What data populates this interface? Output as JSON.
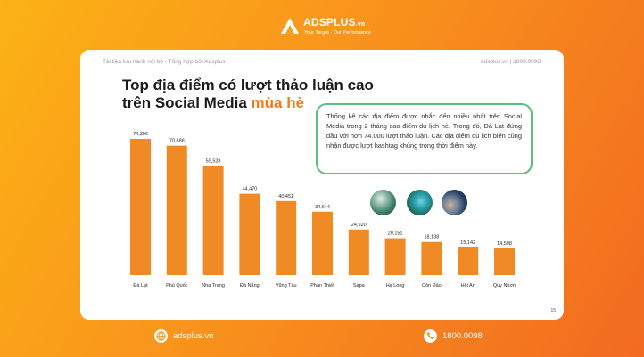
{
  "brand": {
    "name": "ADSPLUS",
    "suffix": ".vn",
    "tagline": "Your Target - Our Performance"
  },
  "header": {
    "left": "Tài liệu lưu hành nội bộ - Tổng hợp bởi Adsplus",
    "right": "adsplus.vn | 1800.0098"
  },
  "title": {
    "line1": "Top địa điểm có lượt thảo luận cao",
    "line2": "trên Social Media ",
    "accent": "mùa hè"
  },
  "info_text": "Thống kê các địa điểm được nhắc đến nhiều nhất trên Social Media trong 2 tháng cao điểm du lịch hè. Trong đó, Đà Lạt đứng đầu với hơn 74.000 lượt thảo luận. Các địa điểm du lịch biển cũng nhận được lượt hashtag khủng trong thời điểm này.",
  "page_number": "15",
  "footer": {
    "website": "adsplus.vn",
    "phone": "1800.0098"
  },
  "colors": {
    "bar": "#f08a24",
    "accent": "#f07b1a",
    "border": "#5cc07a"
  },
  "icons": {
    "website": "globe-icon",
    "phone": "phone-icon"
  },
  "chart_data": {
    "type": "bar",
    "categories": [
      "Đà Lạt",
      "Phú Quốc",
      "Nha Trang",
      "Đà Nẵng",
      "Vũng Tàu",
      "Phan Thiết",
      "Sapa",
      "Hạ Long",
      "Côn Đảo",
      "Hội An",
      "Quy Nhơn"
    ],
    "values": [
      74396,
      70688,
      59528,
      44470,
      40451,
      34644,
      24920,
      20151,
      18138,
      15142,
      14598
    ],
    "labels": [
      "74,396",
      "70,688",
      "59,528",
      "44,470",
      "40,451",
      "34,644",
      "24,920",
      "20,151",
      "18,138",
      "15,142",
      "14,598"
    ],
    "ylim": [
      0,
      74396
    ],
    "grid": false,
    "legend": "none"
  }
}
